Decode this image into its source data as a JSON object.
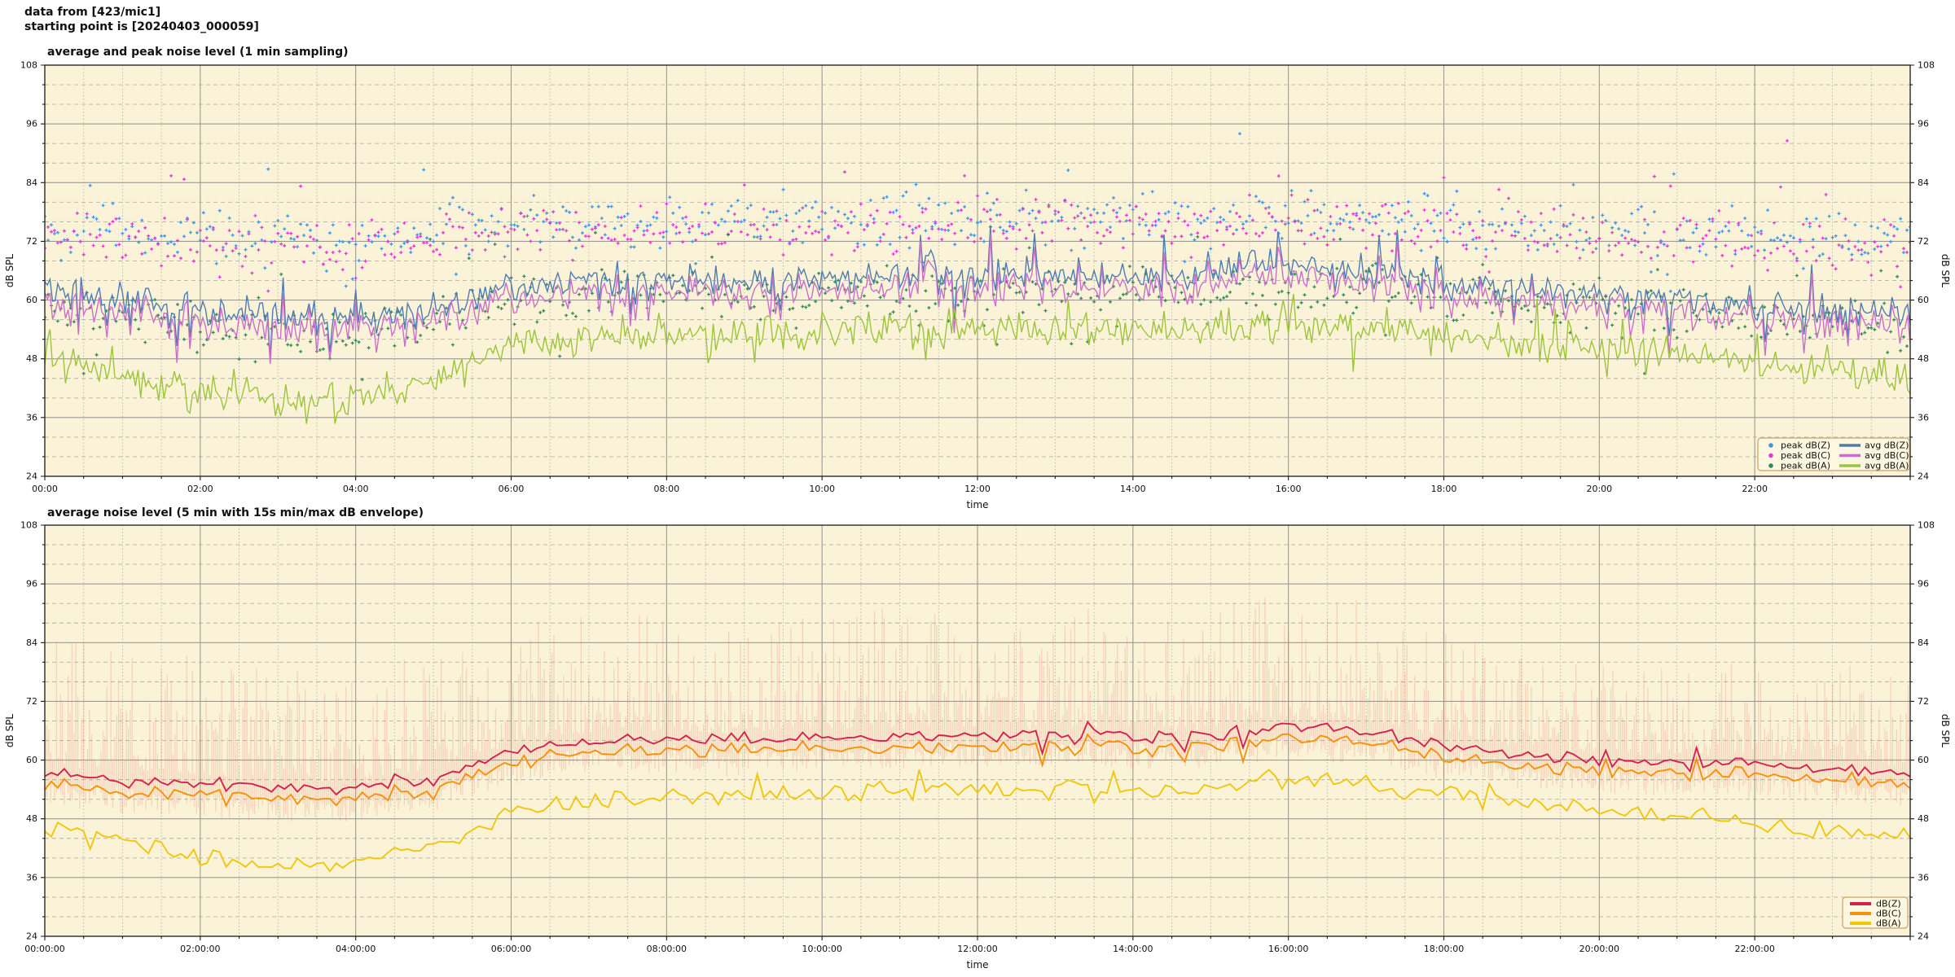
{
  "header": {
    "line1": "data from [423/mic1]",
    "line2": "starting point is [20240403_000059]"
  },
  "colors": {
    "figure_bg": "#ffffff",
    "plot_bg": "#fbf3d7",
    "grid_major": "#9b9b94",
    "grid_minor": "#b3b3ab",
    "spine": "#1a1a1a",
    "legend_face": "#fdf6e0",
    "legend_edge": "#c9a267",
    "peak_dbz": "#3f97e8",
    "peak_dbc": "#e637d8",
    "peak_dba": "#35885a",
    "avg_dbz": "#4f7cb0",
    "avg_dbc": "#c96fc9",
    "avg_dba": "#9cc43c",
    "dbz": "#d2234e",
    "dbc": "#f5920c",
    "dba": "#efc70c",
    "envelope": "#de645a"
  },
  "chart_data": [
    {
      "type": "line",
      "subtype": "avg lines + peak scatter overlay",
      "title": "average and peak noise level (1 min sampling)",
      "xlabel": "time",
      "ylabel_left": "dB SPL",
      "ylabel_right": "dB SPL",
      "ylim": [
        24,
        108
      ],
      "yticks": [
        24,
        36,
        48,
        60,
        72,
        84,
        96,
        108
      ],
      "y_minor_step_db": 4,
      "x_range_hours": 24,
      "xtick_interval_min": 120,
      "x_minor_step_min": 30,
      "xtick_labels": [
        "00:00",
        "02:00",
        "04:00",
        "06:00",
        "08:00",
        "10:00",
        "12:00",
        "14:00",
        "16:00",
        "18:00",
        "20:00",
        "22:00"
      ],
      "grid": "major solid, minor dashed/dotted",
      "legend_position": "lower right, two columns",
      "series": [
        {
          "name": "avg dB(Z)",
          "kind": "line",
          "color_key": "avg_dbz",
          "hourly_db": [
            62,
            60,
            58,
            57,
            56.5,
            58,
            63,
            64,
            64,
            64,
            64.5,
            65,
            65,
            65,
            65,
            66,
            67,
            66,
            64,
            62,
            61,
            60,
            59,
            58,
            57.5
          ],
          "noise_db": 3.2
        },
        {
          "name": "avg dB(C)",
          "kind": "line",
          "color_key": "avg_dbc",
          "offset_below_avg_dbz_db": 2.5,
          "noise_db": 1.0
        },
        {
          "name": "avg dB(A)",
          "kind": "line",
          "color_key": "avg_dba",
          "hourly_db": [
            48,
            45,
            41,
            39,
            40,
            43,
            50,
            52,
            53,
            53,
            53,
            54,
            54,
            54,
            53.5,
            54,
            55,
            54.5,
            53,
            51,
            50,
            49,
            47,
            45.5,
            44
          ],
          "noise_db": 3.4
        },
        {
          "name": "peak dB(Z)",
          "kind": "scatter",
          "color_key": "peak_dbz",
          "hourly_db": [
            75,
            74,
            73,
            72,
            72,
            74,
            76,
            76,
            76,
            76,
            76,
            76,
            77,
            77,
            77,
            77,
            78,
            77,
            76,
            75,
            74,
            74,
            73,
            73,
            73
          ],
          "spread_db": 5.2
        },
        {
          "name": "peak dB(C)",
          "kind": "scatter",
          "color_key": "peak_dbc",
          "hourly_db": [
            73.5,
            72.5,
            71.5,
            70.5,
            70.5,
            72.5,
            74.5,
            74.5,
            74.5,
            74.5,
            74.5,
            74.5,
            75.5,
            75.5,
            75.5,
            75.5,
            76.5,
            75.5,
            74.5,
            73.5,
            72.5,
            72.5,
            71.5,
            71.5,
            71.5
          ],
          "spread_db": 5.2
        },
        {
          "name": "peak dB(A)",
          "kind": "scatter",
          "color_key": "peak_dba",
          "hourly_db": [
            58,
            56,
            54,
            53,
            53,
            56,
            60,
            61,
            61,
            61,
            61,
            62,
            62,
            62,
            62,
            62,
            63,
            62,
            61,
            60,
            59,
            58,
            57,
            56,
            55
          ],
          "spread_db": 5.0
        }
      ],
      "legend": {
        "scatter_labels": [
          "peak dB(Z)",
          "peak dB(C)",
          "peak dB(A)"
        ],
        "line_labels": [
          "avg dB(Z)",
          "avg dB(C)",
          "avg dB(A)"
        ]
      }
    },
    {
      "type": "line",
      "subtype": "avg lines + min/max envelope",
      "title": "average noise level (5 min with 15s min/max dB envelope)",
      "xlabel": "time",
      "ylabel_left": "dB SPL",
      "ylabel_right": "dB SPL",
      "ylim": [
        24,
        108
      ],
      "yticks": [
        24,
        36,
        48,
        60,
        72,
        84,
        96,
        108
      ],
      "y_minor_step_db": 4,
      "x_range_hours": 24,
      "xtick_interval_min": 120,
      "x_minor_step_min": 30,
      "xtick_labels": [
        "00:00:00",
        "02:00:00",
        "04:00:00",
        "06:00:00",
        "08:00:00",
        "10:00:00",
        "12:00:00",
        "14:00:00",
        "16:00:00",
        "18:00:00",
        "20:00:00",
        "22:00:00"
      ],
      "grid": "major solid, minor dashed/dotted",
      "legend_position": "lower right, single column",
      "series": [
        {
          "name": "dB(Z)",
          "kind": "line",
          "color_key": "dbz",
          "hourly_db": [
            58,
            56,
            55,
            54,
            54,
            56,
            62,
            64,
            64,
            64,
            64.5,
            65,
            65,
            65,
            64.5,
            65,
            67,
            66,
            63,
            61,
            60,
            59.5,
            59,
            58,
            57
          ],
          "noise_db": 1.3
        },
        {
          "name": "dB(C)",
          "kind": "line",
          "color_key": "dbc",
          "offset_below_dbz_db": 2.2,
          "noise_db": 0.5
        },
        {
          "name": "dB(A)",
          "kind": "line",
          "color_key": "dba",
          "hourly_db": [
            46,
            43,
            40,
            38,
            39,
            42,
            50,
            52,
            53,
            53,
            53,
            54,
            54,
            54,
            53.5,
            54,
            56,
            55,
            53,
            51,
            50,
            49,
            47,
            45.5,
            44
          ],
          "noise_db": 1.9
        }
      ],
      "envelope": {
        "name": "15s min/max dB envelope around dB(Z)",
        "color_key": "envelope",
        "alpha": 0.22,
        "max_spike_above_dbz_hourly_db": [
          26,
          25,
          24,
          22,
          22,
          23,
          24,
          24,
          24,
          24,
          24,
          25,
          25,
          25,
          24,
          25,
          26,
          25,
          22,
          19,
          18,
          18,
          19,
          20,
          21
        ],
        "min_below_dbz_db": 5
      },
      "legend": {
        "line_labels": [
          "dB(Z)",
          "dB(C)",
          "dB(A)"
        ]
      }
    }
  ]
}
